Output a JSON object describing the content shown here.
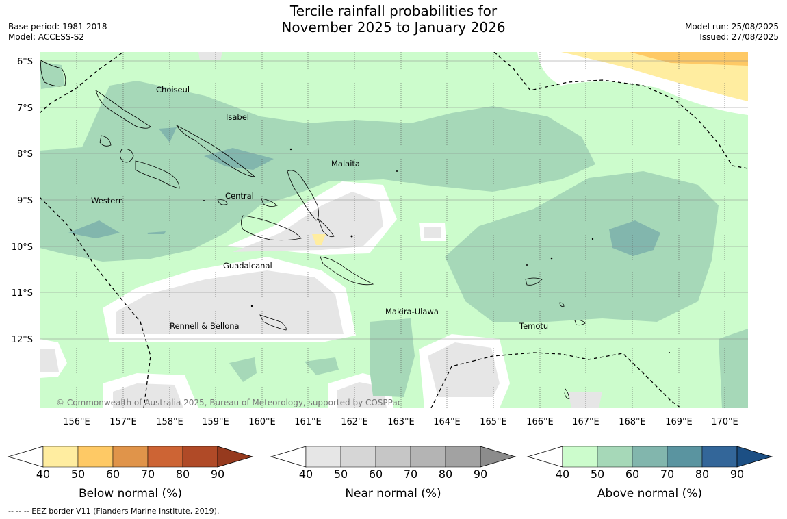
{
  "title": {
    "line1": "Tercile rainfall probabilities for",
    "line2": "November 2025 to January 2026"
  },
  "meta_left": {
    "base_period": "Base period: 1981-2018",
    "model": "Model: ACCESS-S2"
  },
  "meta_right": {
    "model_run": "Model run: 25/08/2025",
    "issued": "Issued: 27/08/2025"
  },
  "map": {
    "lat_labels": [
      "6°S",
      "7°S",
      "8°S",
      "9°S",
      "10°S",
      "11°S",
      "12°S"
    ],
    "lon_labels": [
      "156°E",
      "157°E",
      "158°E",
      "159°E",
      "160°E",
      "161°E",
      "162°E",
      "163°E",
      "164°E",
      "165°E",
      "166°E",
      "167°E",
      "168°E",
      "169°E",
      "170°E"
    ],
    "places": [
      {
        "name": "Choiseul"
      },
      {
        "name": "Isabel"
      },
      {
        "name": "Malaita"
      },
      {
        "name": "Western"
      },
      {
        "name": "Central"
      },
      {
        "name": "Guadalcanal"
      },
      {
        "name": "Makira-Ulawa"
      },
      {
        "name": "Rennell & Bellona"
      },
      {
        "name": "Temotu"
      }
    ],
    "copyright": "© Commonwealth of Australia 2025, Bureau of Meteorology, supported by COSPPac"
  },
  "colorbars": [
    {
      "title": "Below normal (%)",
      "ticks": [
        "40",
        "50",
        "60",
        "70",
        "80",
        "90"
      ],
      "colors": [
        "#ffeda0",
        "#fec965",
        "#e0944a",
        "#cd6434",
        "#b04a27",
        "#963a1e"
      ]
    },
    {
      "title": "Near normal (%)",
      "ticks": [
        "40",
        "50",
        "60",
        "70",
        "80",
        "90"
      ],
      "colors": [
        "#e6e6e6",
        "#d6d6d6",
        "#c6c6c6",
        "#b4b4b4",
        "#a2a2a2",
        "#8c8c8c"
      ]
    },
    {
      "title": "Above normal (%)",
      "ticks": [
        "40",
        "50",
        "60",
        "70",
        "80",
        "90"
      ],
      "colors": [
        "#ccfccc",
        "#a6d8b8",
        "#82b6ad",
        "#5a94a0",
        "#336699",
        "#1c4f84"
      ]
    }
  ],
  "footer": "--  --  -- EEZ border V11 (Flanders Marine Institute, 2019)."
}
